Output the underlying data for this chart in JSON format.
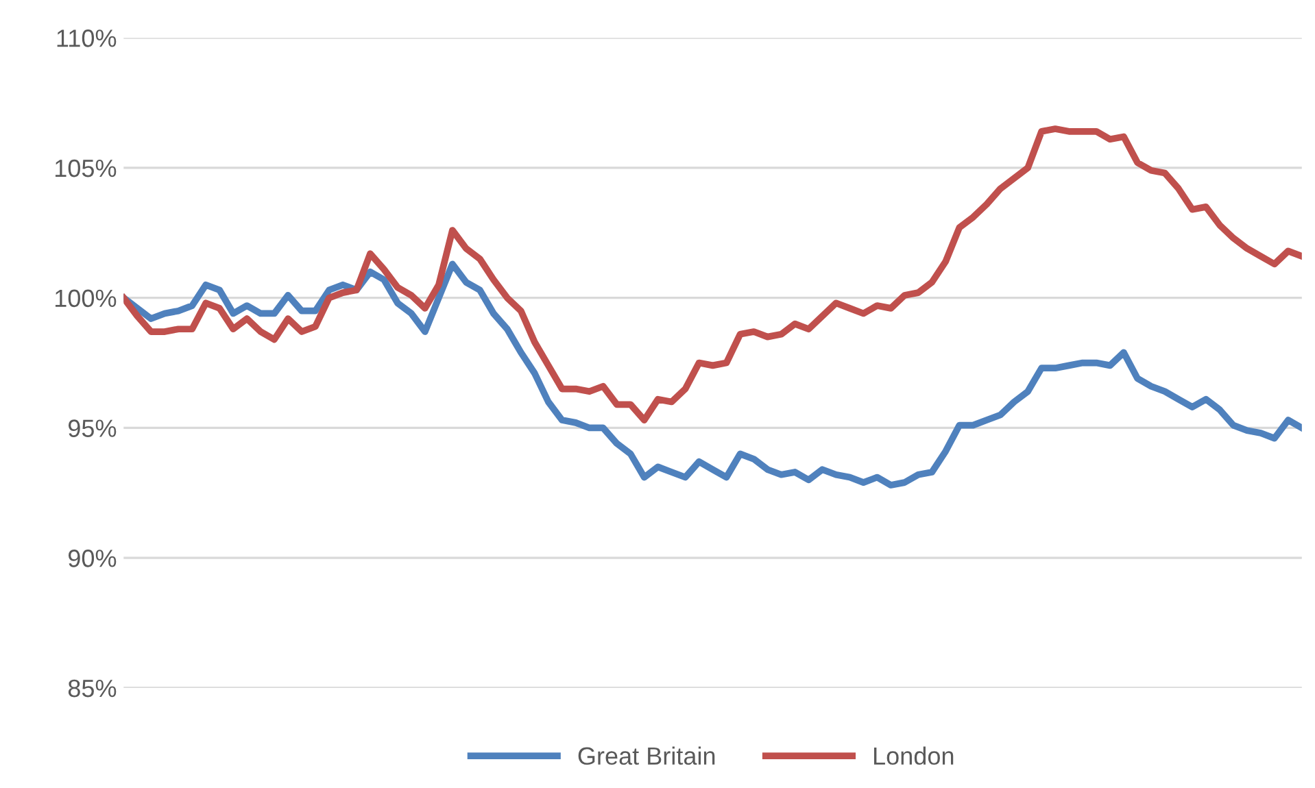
{
  "chart_data": {
    "type": "line",
    "ylim": [
      85,
      110
    ],
    "yticks": [
      {
        "value": 85,
        "label": "85%"
      },
      {
        "value": 90,
        "label": "90%"
      },
      {
        "value": 95,
        "label": "95%"
      },
      {
        "value": 100,
        "label": "100%"
      },
      {
        "value": 105,
        "label": "105%"
      },
      {
        "value": 110,
        "label": "110%"
      }
    ],
    "tick_labels": "y",
    "grid": "y",
    "legend": "bottom",
    "marker": "none",
    "line_style": "solid",
    "categories": [
      null,
      null,
      null,
      null,
      null,
      null,
      null,
      null,
      null,
      null,
      null,
      null,
      null,
      null,
      null,
      null,
      null,
      null,
      null,
      null,
      null,
      null,
      null,
      null,
      null,
      null,
      null,
      null,
      null,
      null,
      null,
      null,
      null,
      null,
      null,
      null,
      null,
      null,
      null,
      null,
      null,
      null,
      null,
      null,
      null,
      null,
      null,
      null,
      null,
      null,
      null,
      null,
      null,
      null,
      null,
      null,
      null,
      null,
      null,
      null,
      null,
      null,
      null,
      null,
      null,
      null,
      null,
      null,
      null,
      null,
      null,
      null,
      null,
      null,
      null,
      null,
      null,
      null,
      null,
      null,
      null,
      null,
      null,
      null,
      null,
      null,
      null
    ],
    "series": [
      {
        "name": "Great Britain",
        "color": "#4f81bd",
        "values": [
          100.0,
          99.6,
          99.2,
          99.4,
          99.5,
          99.7,
          100.5,
          100.3,
          99.4,
          99.7,
          99.4,
          99.4,
          100.1,
          99.5,
          99.5,
          100.3,
          100.5,
          100.3,
          101.0,
          100.7,
          99.8,
          99.4,
          98.7,
          100.0,
          101.3,
          100.6,
          100.3,
          99.4,
          98.8,
          97.9,
          97.1,
          96.0,
          95.3,
          95.2,
          95.0,
          95.0,
          94.4,
          94.0,
          93.1,
          93.5,
          93.3,
          93.1,
          93.7,
          93.4,
          93.1,
          94.0,
          93.8,
          93.4,
          93.2,
          93.3,
          93.0,
          93.4,
          93.2,
          93.1,
          92.9,
          93.1,
          92.8,
          92.9,
          93.2,
          93.3,
          94.1,
          95.1,
          95.1,
          95.3,
          95.5,
          96.0,
          96.4,
          97.3,
          97.3,
          97.4,
          97.5,
          97.5,
          97.4,
          97.9,
          96.9,
          96.6,
          96.4,
          96.1,
          95.8,
          96.1,
          95.7,
          95.1,
          94.9,
          94.8,
          94.6,
          95.3,
          95.0
        ]
      },
      {
        "name": "London",
        "color": "#c0504d",
        "values": [
          100.0,
          99.3,
          98.7,
          98.7,
          98.8,
          98.8,
          99.8,
          99.6,
          98.8,
          99.2,
          98.7,
          98.4,
          99.2,
          98.7,
          98.9,
          100.0,
          100.2,
          100.3,
          101.7,
          101.1,
          100.4,
          100.1,
          99.6,
          100.5,
          102.6,
          101.9,
          101.5,
          100.7,
          100.0,
          99.5,
          98.3,
          97.4,
          96.5,
          96.5,
          96.4,
          96.6,
          95.9,
          95.9,
          95.3,
          96.1,
          96.0,
          96.5,
          97.5,
          97.4,
          97.5,
          98.6,
          98.7,
          98.5,
          98.6,
          99.0,
          98.8,
          99.3,
          99.8,
          99.6,
          99.4,
          99.7,
          99.6,
          100.1,
          100.2,
          100.6,
          101.4,
          102.7,
          103.1,
          103.6,
          104.2,
          104.6,
          105.0,
          106.4,
          106.5,
          106.4,
          106.4,
          106.4,
          106.1,
          106.2,
          105.2,
          104.9,
          104.8,
          104.2,
          103.4,
          103.5,
          102.8,
          102.3,
          101.9,
          101.6,
          101.3,
          101.8,
          101.6
        ]
      }
    ]
  }
}
